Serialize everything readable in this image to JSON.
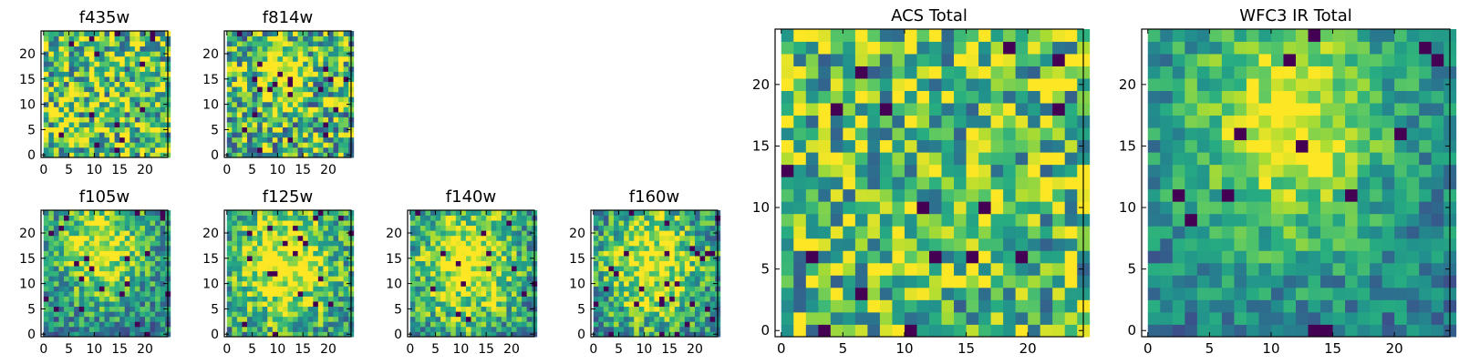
{
  "chart_data": [
    {
      "type": "heatmap",
      "title": "f435w",
      "grid_size": 25,
      "xlim": [
        -0.5,
        24.5
      ],
      "ylim": [
        -0.5,
        24.5
      ],
      "xticks": [
        "0",
        "5",
        "10",
        "15",
        "20"
      ],
      "yticks": [
        "0",
        "5",
        "10",
        "15",
        "20"
      ],
      "colormap": "viridis",
      "peak": null,
      "core_radius": 0,
      "noise": 0.55,
      "bias": 0.72,
      "seed": 11
    },
    {
      "type": "heatmap",
      "title": "f814w",
      "grid_size": 25,
      "xlim": [
        -0.5,
        24.5
      ],
      "ylim": [
        -0.5,
        24.5
      ],
      "xticks": [
        "0",
        "5",
        "10",
        "15",
        "20"
      ],
      "yticks": [
        "0",
        "5",
        "10",
        "15",
        "20"
      ],
      "colormap": "viridis",
      "peak": [
        10,
        16
      ],
      "core_radius": 3,
      "noise": 0.55,
      "bias": 0.66,
      "seed": 23
    },
    {
      "type": "heatmap",
      "title": "f105w",
      "grid_size": 25,
      "xlim": [
        -0.5,
        24.5
      ],
      "ylim": [
        -0.5,
        24.5
      ],
      "xticks": [
        "0",
        "5",
        "10",
        "15",
        "20"
      ],
      "yticks": [
        "0",
        "5",
        "10",
        "15",
        "20"
      ],
      "colormap": "viridis",
      "peak": [
        11,
        17
      ],
      "core_radius": 6,
      "noise": 0.35,
      "bias": 0.45,
      "seed": 37
    },
    {
      "type": "heatmap",
      "title": "f125w",
      "grid_size": 25,
      "xlim": [
        -0.5,
        24.5
      ],
      "ylim": [
        -0.5,
        24.5
      ],
      "xticks": [
        "0",
        "5",
        "10",
        "15",
        "20"
      ],
      "yticks": [
        "0",
        "5",
        "10",
        "15",
        "20"
      ],
      "colormap": "viridis",
      "peak": [
        11,
        14
      ],
      "core_radius": 7,
      "noise": 0.38,
      "bias": 0.5,
      "seed": 41
    },
    {
      "type": "heatmap",
      "title": "f140w",
      "grid_size": 25,
      "xlim": [
        -0.5,
        24.5
      ],
      "ylim": [
        -0.5,
        24.5
      ],
      "xticks": [
        "0",
        "5",
        "10",
        "15",
        "20"
      ],
      "yticks": [
        "0",
        "5",
        "10",
        "15",
        "20"
      ],
      "colormap": "viridis",
      "peak": [
        11,
        14
      ],
      "core_radius": 7,
      "noise": 0.38,
      "bias": 0.48,
      "seed": 53
    },
    {
      "type": "heatmap",
      "title": "f160w",
      "grid_size": 25,
      "xlim": [
        -0.5,
        24.5
      ],
      "ylim": [
        -0.5,
        24.5
      ],
      "xticks": [
        "0",
        "5",
        "10",
        "15",
        "20"
      ],
      "yticks": [
        "0",
        "5",
        "10",
        "15",
        "20"
      ],
      "colormap": "viridis",
      "peak": [
        11,
        14
      ],
      "core_radius": 7,
      "noise": 0.38,
      "bias": 0.45,
      "seed": 67
    },
    {
      "type": "heatmap",
      "title": "ACS Total",
      "grid_size": 25,
      "xlim": [
        -0.5,
        24.5
      ],
      "ylim": [
        -0.5,
        24.5
      ],
      "xticks": [
        "0",
        "5",
        "10",
        "15",
        "20"
      ],
      "yticks": [
        "0",
        "5",
        "10",
        "15",
        "20"
      ],
      "colormap": "viridis",
      "peak": null,
      "core_radius": 0,
      "noise": 0.5,
      "bias": 0.7,
      "seed": 79
    },
    {
      "type": "heatmap",
      "title": "WFC3 IR Total",
      "grid_size": 25,
      "xlim": [
        -0.5,
        24.5
      ],
      "ylim": [
        -0.5,
        24.5
      ],
      "xticks": [
        "0",
        "5",
        "10",
        "15",
        "20"
      ],
      "yticks": [
        "0",
        "5",
        "10",
        "15",
        "20"
      ],
      "colormap": "viridis",
      "peak": [
        11,
        17
      ],
      "core_radius": 6,
      "noise": 0.25,
      "bias": 0.42,
      "seed": 97
    }
  ]
}
